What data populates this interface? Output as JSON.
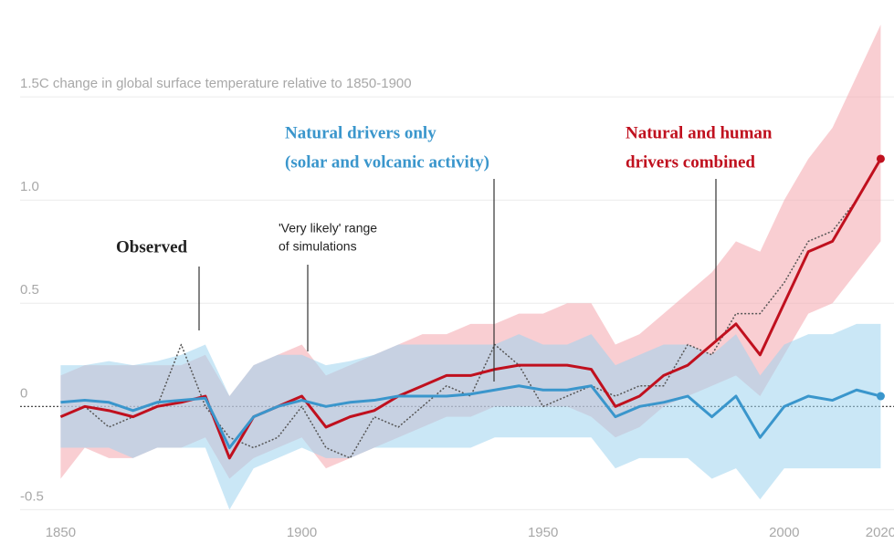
{
  "chart_data": {
    "type": "line",
    "x": [
      1850,
      1855,
      1860,
      1865,
      1870,
      1875,
      1880,
      1885,
      1890,
      1895,
      1900,
      1905,
      1910,
      1915,
      1920,
      1925,
      1930,
      1935,
      1940,
      1945,
      1950,
      1955,
      1960,
      1965,
      1970,
      1975,
      1980,
      1985,
      1990,
      1995,
      2000,
      2005,
      2010,
      2015,
      2020
    ],
    "xlim": [
      1845,
      2022
    ],
    "xticks": [
      1850,
      1900,
      1950,
      2000,
      2020
    ],
    "ylim": [
      -0.6,
      1.85
    ],
    "yticks": [
      {
        "value": -0.5,
        "label": "-0.5"
      },
      0,
      0.5,
      {
        "value": 1,
        "label": "1.0"
      },
      {
        "value": 1.5,
        "label": "1.5C change in global surface temperature relative to 1850-1900"
      }
    ],
    "grid": true,
    "range_note": [
      "'Very likely' range",
      "of simulations"
    ],
    "series": [
      {
        "name": [
          "Natural and human",
          "drivers combined"
        ],
        "color": "#c0101e",
        "band_color": "#f4a6ad",
        "values": [
          -0.05,
          0.0,
          -0.02,
          -0.05,
          0.0,
          0.02,
          0.05,
          -0.25,
          -0.05,
          0.0,
          0.05,
          -0.1,
          -0.05,
          -0.02,
          0.05,
          0.1,
          0.15,
          0.15,
          0.18,
          0.2,
          0.2,
          0.2,
          0.18,
          0.0,
          0.05,
          0.15,
          0.2,
          0.3,
          0.4,
          0.25,
          0.5,
          0.75,
          0.8,
          1.0,
          1.2
        ],
        "lower": [
          -0.35,
          -0.2,
          -0.25,
          -0.25,
          -0.2,
          -0.2,
          -0.15,
          -0.35,
          -0.25,
          -0.2,
          -0.15,
          -0.3,
          -0.25,
          -0.2,
          -0.15,
          -0.1,
          -0.05,
          -0.05,
          0.0,
          0.0,
          0.0,
          0.0,
          -0.05,
          -0.15,
          -0.1,
          0.0,
          0.05,
          0.1,
          0.15,
          0.05,
          0.25,
          0.45,
          0.5,
          0.65,
          0.8
        ],
        "upper": [
          0.15,
          0.2,
          0.2,
          0.2,
          0.2,
          0.2,
          0.25,
          0.05,
          0.2,
          0.25,
          0.3,
          0.15,
          0.2,
          0.25,
          0.3,
          0.35,
          0.35,
          0.4,
          0.4,
          0.45,
          0.45,
          0.5,
          0.5,
          0.3,
          0.35,
          0.45,
          0.55,
          0.65,
          0.8,
          0.75,
          1.0,
          1.2,
          1.35,
          1.6,
          1.85
        ]
      },
      {
        "name": [
          "Natural drivers only",
          "(solar and volcanic activity)"
        ],
        "color": "#3a96cc",
        "band_color": "#9fd3ee",
        "values": [
          0.02,
          0.03,
          0.02,
          -0.02,
          0.02,
          0.03,
          0.04,
          -0.2,
          -0.05,
          0.0,
          0.03,
          0.0,
          0.02,
          0.03,
          0.05,
          0.05,
          0.05,
          0.06,
          0.08,
          0.1,
          0.08,
          0.08,
          0.1,
          -0.05,
          0.0,
          0.02,
          0.05,
          -0.05,
          0.05,
          -0.15,
          0.0,
          0.05,
          0.03,
          0.08,
          0.05
        ],
        "lower": [
          -0.2,
          -0.2,
          -0.2,
          -0.25,
          -0.2,
          -0.2,
          -0.2,
          -0.5,
          -0.3,
          -0.25,
          -0.2,
          -0.25,
          -0.25,
          -0.2,
          -0.2,
          -0.2,
          -0.2,
          -0.2,
          -0.15,
          -0.15,
          -0.15,
          -0.15,
          -0.15,
          -0.3,
          -0.25,
          -0.25,
          -0.25,
          -0.35,
          -0.3,
          -0.45,
          -0.3,
          -0.3,
          -0.3,
          -0.3,
          -0.3
        ],
        "upper": [
          0.2,
          0.2,
          0.22,
          0.2,
          0.22,
          0.25,
          0.3,
          0.05,
          0.2,
          0.25,
          0.25,
          0.2,
          0.22,
          0.25,
          0.3,
          0.3,
          0.3,
          0.3,
          0.3,
          0.35,
          0.3,
          0.3,
          0.35,
          0.2,
          0.25,
          0.3,
          0.3,
          0.25,
          0.35,
          0.15,
          0.3,
          0.35,
          0.35,
          0.4,
          0.4
        ]
      },
      {
        "name": [
          "Observed"
        ],
        "color": "#555555",
        "dashed": true,
        "values": [
          -0.05,
          0.0,
          -0.1,
          -0.05,
          0.0,
          0.3,
          0.0,
          -0.15,
          -0.2,
          -0.15,
          0.0,
          -0.2,
          -0.25,
          -0.05,
          -0.1,
          0.0,
          0.1,
          0.05,
          0.3,
          0.2,
          0.0,
          0.05,
          0.1,
          0.05,
          0.1,
          0.1,
          0.3,
          0.25,
          0.45,
          0.45,
          0.6,
          0.8,
          0.85,
          1.0,
          1.2
        ]
      }
    ]
  }
}
